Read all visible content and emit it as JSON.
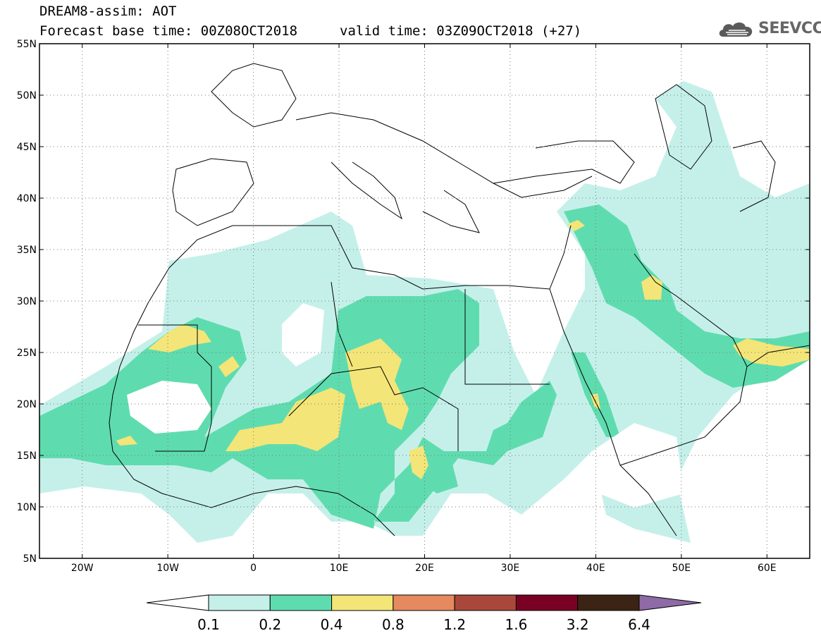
{
  "header": {
    "model_title": "DREAM8-assim: AOT",
    "base_time": "Forecast base time: 00Z08OCT2018",
    "valid_time": "valid time: 03Z09OCT2018 (+27)",
    "logo_text": "SEEVCCC"
  },
  "map": {
    "lon_range": [
      -25,
      65
    ],
    "lat_range": [
      5,
      55
    ],
    "lat_labels": [
      "55N",
      "50N",
      "45N",
      "40N",
      "35N",
      "30N",
      "25N",
      "20N",
      "15N",
      "10N",
      "5N"
    ],
    "lon_labels": [
      "20W",
      "10W",
      "0",
      "10E",
      "20E",
      "30E",
      "40E",
      "50E",
      "60E"
    ],
    "grid": "dotted"
  },
  "colorbar": {
    "thresholds": [
      "0.1",
      "0.2",
      "0.4",
      "0.8",
      "1.2",
      "1.6",
      "3.2",
      "6.4"
    ],
    "colors": [
      "#ffffff",
      "#c5f0ea",
      "#5fdcaf",
      "#f4e578",
      "#e48a5e",
      "#a9483a",
      "#7a0024",
      "#3b2414",
      "#8e6aa6"
    ]
  }
}
